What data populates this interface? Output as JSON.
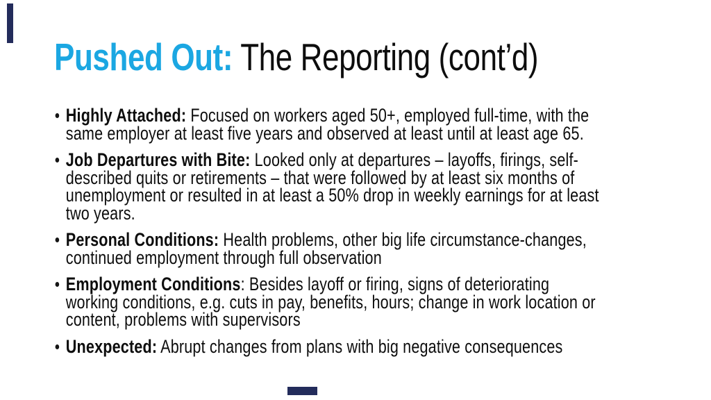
{
  "slide": {
    "accent_color": "#1ba7e2",
    "text_color": "#0d0d0d",
    "edge_mark_color": "#232c5b",
    "title": {
      "accent": "Pushed Out:",
      "rest": " The Reporting (cont’d)"
    },
    "bullets": [
      {
        "lead": "Highly Attached:",
        "lines": [
          " Focused on workers aged 50+, employed full-time, with the",
          "same employer at least five years and observed at least until at least age 65."
        ]
      },
      {
        "lead": "Job Departures with Bite:",
        "lines": [
          " Looked only at departures – layoffs, firings, self-",
          "described quits or retirements – that were followed by at least six months of",
          "unemployment or resulted in at least a 50% drop in weekly earnings for at least",
          "two years."
        ]
      },
      {
        "lead": "Personal Conditions:",
        "lines": [
          " Health problems, other big life circumstance-changes,",
          "continued employment through full observation"
        ]
      },
      {
        "lead": "Employment Conditions",
        "lines": [
          ": Besides layoff or firing, signs of deteriorating",
          "working conditions, e.g. cuts in pay, benefits, hours; change in work location or",
          "content, problems with supervisors"
        ]
      },
      {
        "lead": "Unexpected:",
        "lines": [
          "  Abrupt changes from plans with big negative consequences"
        ]
      }
    ]
  }
}
